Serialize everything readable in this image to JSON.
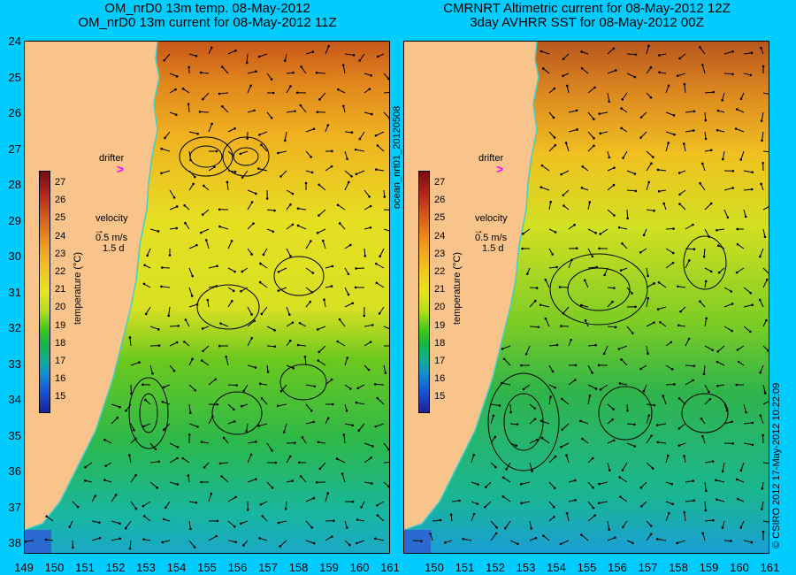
{
  "titles": {
    "left_line1": "OM_nrD0 13m temp. 08-May-2012",
    "left_line2": "OM_nrD0 13m current for 08-May-2012 11Z",
    "right_line1": "CMRNRT Altimetric current for 08-May-2012 12Z",
    "right_line2": "3day AVHRR SST for 08-May-2012 00Z"
  },
  "latitude_labels": [
    "24",
    "25",
    "26",
    "27",
    "28",
    "29",
    "30",
    "31",
    "32",
    "33",
    "34",
    "35",
    "36",
    "37",
    "38"
  ],
  "longitude_labels": [
    "149",
    "150",
    "151",
    "152",
    "153",
    "154",
    "155",
    "156",
    "157",
    "158",
    "159",
    "160",
    "161"
  ],
  "longitude_labels_right": [
    "150",
    "151",
    "152",
    "153",
    "154",
    "155",
    "156",
    "157",
    "158",
    "159",
    "160",
    "161"
  ],
  "left_panel": {
    "drifter_label": "drifter",
    "velocity_label": "velocity",
    "velocity_scale": "0.5 m/s",
    "velocity_time": "1.5 d",
    "colorbar_ticks": [
      "27",
      "26",
      "25",
      "24",
      "23",
      "22",
      "21",
      "20",
      "19",
      "18",
      "17",
      "16",
      "15"
    ],
    "colorbar_label": "temperature (°C)"
  },
  "right_panel": {
    "drifter_label": "drifter",
    "velocity_label": "velocity",
    "velocity_scale": "0.5 m/s",
    "velocity_time": "1.5 d",
    "colorbar_ticks": [
      "27",
      "26",
      "25",
      "24",
      "23",
      "22",
      "21",
      "20",
      "19",
      "18",
      "17",
      "16",
      "15"
    ],
    "colorbar_label": "temperature (°C)"
  },
  "side_labels": {
    "middle_vertical": "ocean_nrt01_20120508",
    "right_vertical": "© CSIRO 2012   17-May-2012 10:22:09"
  },
  "colors": {
    "background": "#00ccff",
    "land": "#f8c48c",
    "coastline": "#40d0c8",
    "drifter_marker": "#ff00ff"
  }
}
